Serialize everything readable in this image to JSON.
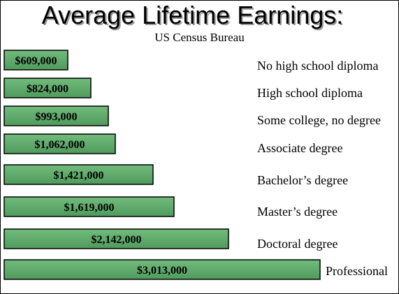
{
  "chart_data": {
    "type": "bar",
    "orientation": "horizontal",
    "title": "Average Lifetime Earnings:",
    "subtitle": "US Census Bureau",
    "xlim": [
      0,
      3013000
    ],
    "grid": false,
    "legend": "none",
    "bar_color": "#5aa867",
    "categories": [
      "No high school diploma",
      "High school diploma",
      "Some college, no degree",
      "Associate degree",
      "Bachelor’s degree",
      "Master’s degree",
      "Doctoral degree",
      "Professional"
    ],
    "values": [
      609000,
      824000,
      993000,
      1062000,
      1421000,
      1619000,
      2142000,
      3013000
    ],
    "data_labels": [
      "$609,000",
      "$824,000",
      "$993,000",
      "$1,062,000",
      "$1,421,000",
      "$1,619,000",
      "$2,142,000",
      "$3,013,000"
    ]
  }
}
